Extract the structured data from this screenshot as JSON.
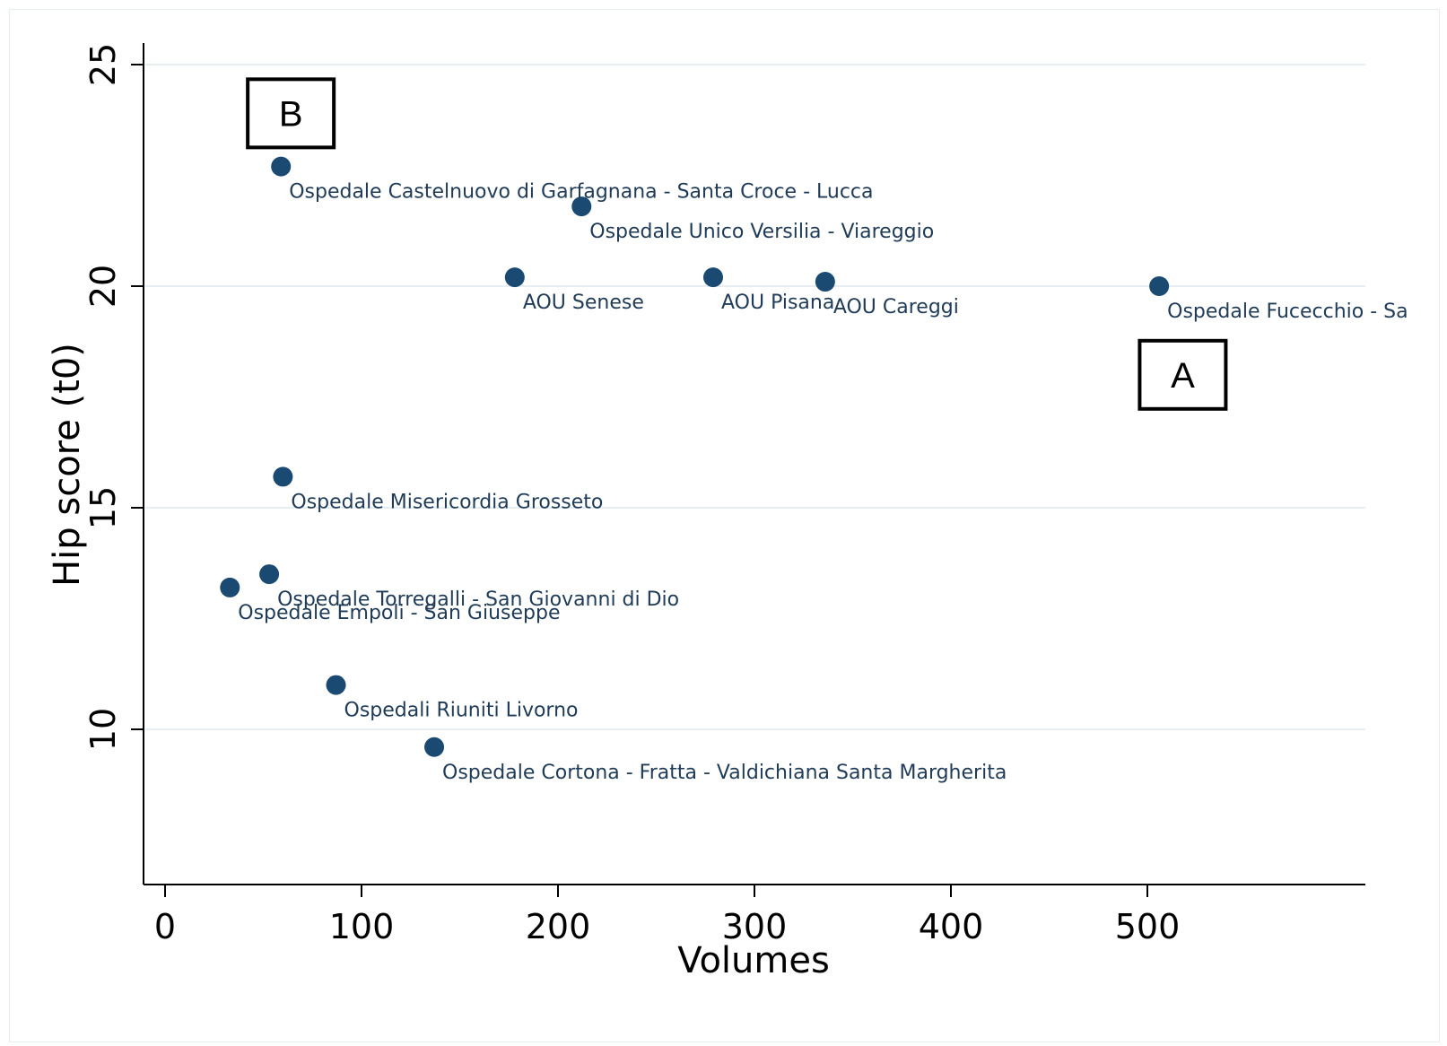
{
  "chart_data": {
    "type": "scatter",
    "xlabel": "Volumes",
    "ylabel": "Hip score (t0)",
    "xlim": [
      -10,
      610
    ],
    "ylim": [
      6.5,
      25.5
    ],
    "xticks": [
      0,
      100,
      200,
      300,
      400,
      500
    ],
    "xtick_labels": [
      "0",
      "100",
      "200",
      "300",
      "400",
      "500"
    ],
    "yticks": [
      10,
      15,
      20,
      25
    ],
    "ytick_labels": [
      "10",
      "15",
      "20",
      "25"
    ],
    "grid": true,
    "marker_color": "#1a4a72",
    "points": [
      {
        "x": 59,
        "y": 22.7,
        "label": "Ospedale Castelnuovo di Garfagnana - Santa Croce - Lucca"
      },
      {
        "x": 212,
        "y": 21.8,
        "label": "Ospedale Unico Versilia - Viareggio"
      },
      {
        "x": 178,
        "y": 20.2,
        "label": "AOU Senese"
      },
      {
        "x": 279,
        "y": 20.2,
        "label": "AOU Pisana"
      },
      {
        "x": 336,
        "y": 20.1,
        "label": "AOU Careggi"
      },
      {
        "x": 506,
        "y": 20.0,
        "label": "Ospedale Fucecchio - Sa"
      },
      {
        "x": 60,
        "y": 15.7,
        "label": "Ospedale Misericordia Grosseto"
      },
      {
        "x": 53,
        "y": 13.5,
        "label": "Ospedale Torregalli - San Giovanni di Dio"
      },
      {
        "x": 33,
        "y": 13.2,
        "label": "Ospedale Empoli - San Giuseppe"
      },
      {
        "x": 87,
        "y": 11.0,
        "label": "Ospedali Riuniti Livorno"
      },
      {
        "x": 137,
        "y": 9.6,
        "label": "Ospedale Cortona - Fratta - Valdichiana Santa Margherita"
      }
    ],
    "annotations": [
      {
        "text": "A",
        "x": 518,
        "y": 18.0
      },
      {
        "text": "B",
        "x": 64,
        "y": 23.9
      }
    ]
  }
}
